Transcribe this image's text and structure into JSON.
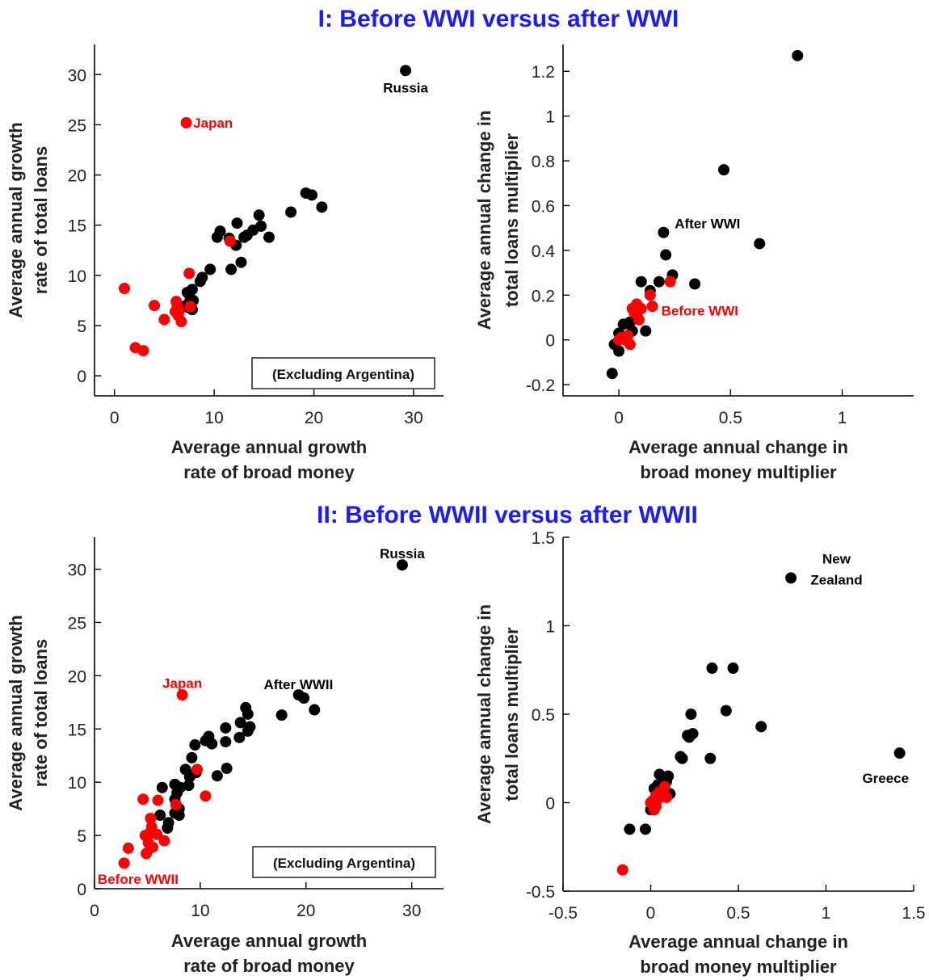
{
  "sections": [
    {
      "title": "I: Before WWI versus after WWI"
    },
    {
      "title": "II: Before WWII versus after WWII"
    }
  ],
  "colors": {
    "before": "#ff0000",
    "after": "#000000",
    "title": "#1a1aff"
  },
  "chart_data": [
    {
      "id": "panel-1a",
      "type": "scatter",
      "xlabel": [
        "Average annual growth",
        "rate of broad money"
      ],
      "ylabel": [
        "Average annual growth",
        "rate of total loans"
      ],
      "xlim": [
        -2,
        33
      ],
      "ylim": [
        -2,
        33
      ],
      "xticks": [
        0,
        10,
        20,
        30
      ],
      "yticks": [
        0,
        5,
        10,
        15,
        20,
        25,
        30
      ],
      "tick_labels_x": [
        "0",
        "10",
        "20",
        "30"
      ],
      "tick_labels_y": [
        "0",
        "5",
        "10",
        "15",
        "20",
        "25",
        "30"
      ],
      "note_box": "(Excluding Argentina)",
      "series": [
        {
          "color": "#000000",
          "points": [
            [
              29.2,
              30.4
            ],
            [
              19.2,
              18.2
            ],
            [
              19.8,
              18.0
            ],
            [
              20.8,
              16.8
            ],
            [
              17.7,
              16.3
            ],
            [
              14.5,
              16.0
            ],
            [
              12.3,
              15.2
            ],
            [
              14.7,
              14.9
            ],
            [
              13.9,
              14.5
            ],
            [
              10.6,
              14.4
            ],
            [
              13.3,
              14.0
            ],
            [
              13.0,
              13.8
            ],
            [
              10.3,
              13.8
            ],
            [
              11.5,
              13.7
            ],
            [
              15.5,
              13.8
            ],
            [
              12.2,
              13.0
            ],
            [
              11.7,
              10.6
            ],
            [
              12.7,
              11.3
            ],
            [
              9.6,
              10.6
            ],
            [
              8.8,
              9.8
            ],
            [
              8.6,
              9.4
            ],
            [
              7.8,
              8.6
            ],
            [
              7.3,
              8.3
            ],
            [
              7.6,
              7.6
            ],
            [
              7.9,
              7.5
            ],
            [
              7.2,
              7.0
            ],
            [
              7.4,
              6.8
            ],
            [
              7.8,
              6.6
            ]
          ]
        },
        {
          "color": "#ff0000",
          "points": [
            [
              7.2,
              25.2
            ],
            [
              1.0,
              8.7
            ],
            [
              11.6,
              13.4
            ],
            [
              7.5,
              10.2
            ],
            [
              4.0,
              7.0
            ],
            [
              6.2,
              7.4
            ],
            [
              6.3,
              7.0
            ],
            [
              6.5,
              6.5
            ],
            [
              6.4,
              6.0
            ],
            [
              6.1,
              6.4
            ],
            [
              5.0,
              5.6
            ],
            [
              6.7,
              5.4
            ],
            [
              7.6,
              6.9
            ],
            [
              2.1,
              2.8
            ],
            [
              2.9,
              2.5
            ]
          ]
        }
      ],
      "annotations": [
        {
          "text": "Russia",
          "x": 29.2,
          "y": 28.7,
          "color": "#000000",
          "anchor": "middle"
        },
        {
          "text": "Japan",
          "x": 7.9,
          "y": 25.2,
          "color": "#ff0000",
          "anchor": "start"
        }
      ]
    },
    {
      "id": "panel-1b",
      "type": "scatter",
      "xlabel": [
        "Average annual change in",
        "broad money multiplier"
      ],
      "ylabel": [
        "Average annual change in",
        "total loans multiplier"
      ],
      "xlim": [
        -0.25,
        1.32
      ],
      "ylim": [
        -0.25,
        1.32
      ],
      "xticks": [
        0,
        0.5,
        1
      ],
      "yticks": [
        -0.2,
        0,
        0.2,
        0.4,
        0.6,
        0.8,
        1,
        1.2
      ],
      "tick_labels_x": [
        "0",
        "0.5",
        "1"
      ],
      "tick_labels_y": [
        "-0.2",
        "0",
        "0.2",
        "0.4",
        "0.6",
        "0.8",
        "1",
        "1.2"
      ],
      "series": [
        {
          "color": "#000000",
          "points": [
            [
              0.8,
              1.27
            ],
            [
              0.47,
              0.76
            ],
            [
              0.63,
              0.43
            ],
            [
              0.2,
              0.48
            ],
            [
              0.21,
              0.38
            ],
            [
              0.24,
              0.29
            ],
            [
              0.34,
              0.25
            ],
            [
              0.18,
              0.26
            ],
            [
              0.1,
              0.26
            ],
            [
              0.14,
              0.22
            ],
            [
              0.12,
              0.04
            ],
            [
              -0.03,
              -0.15
            ],
            [
              -0.02,
              -0.02
            ],
            [
              0.0,
              -0.05
            ],
            [
              0.02,
              0.07
            ],
            [
              0.05,
              0.08
            ],
            [
              0.08,
              0.11
            ],
            [
              0.06,
              0.04
            ],
            [
              0.0,
              0.03
            ]
          ]
        },
        {
          "color": "#ff0000",
          "points": [
            [
              0.23,
              0.26
            ],
            [
              0.14,
              0.2
            ],
            [
              0.08,
              0.16
            ],
            [
              0.1,
              0.14
            ],
            [
              0.15,
              0.15
            ],
            [
              0.07,
              0.12
            ],
            [
              0.09,
              0.09
            ],
            [
              0.06,
              0.14
            ],
            [
              0.04,
              0.02
            ],
            [
              0.01,
              0.01
            ],
            [
              0.0,
              0.0
            ],
            [
              0.03,
              0.0
            ],
            [
              0.05,
              -0.02
            ]
          ]
        }
      ],
      "annotations": [
        {
          "text": "After WWI",
          "x": 0.25,
          "y": 0.52,
          "color": "#000000",
          "anchor": "start"
        },
        {
          "text": "Before WWI",
          "x": 0.19,
          "y": 0.13,
          "color": "#ff0000",
          "anchor": "start"
        }
      ]
    },
    {
      "id": "panel-2a",
      "type": "scatter",
      "xlabel": [
        "Average annual growth",
        "rate of broad money"
      ],
      "ylabel": [
        "Average annual growth",
        "rate of total loans"
      ],
      "xlim": [
        0,
        33
      ],
      "ylim": [
        0,
        33
      ],
      "xticks": [
        0,
        10,
        20,
        30
      ],
      "yticks": [
        0,
        5,
        10,
        15,
        20,
        25,
        30
      ],
      "tick_labels_x": [
        "0",
        "10",
        "20",
        "30"
      ],
      "tick_labels_y": [
        "0",
        "5",
        "10",
        "15",
        "20",
        "25",
        "30"
      ],
      "note_box": "(Excluding Argentina)",
      "series": [
        {
          "color": "#000000",
          "points": [
            [
              29.1,
              30.4
            ],
            [
              19.3,
              18.2
            ],
            [
              19.8,
              17.9
            ],
            [
              20.8,
              16.8
            ],
            [
              17.7,
              16.3
            ],
            [
              14.3,
              17.0
            ],
            [
              14.5,
              16.4
            ],
            [
              13.8,
              15.6
            ],
            [
              14.7,
              15.2
            ],
            [
              12.4,
              15.1
            ],
            [
              13.7,
              14.2
            ],
            [
              14.5,
              14.8
            ],
            [
              10.8,
              14.3
            ],
            [
              11.1,
              13.6
            ],
            [
              10.5,
              13.9
            ],
            [
              12.4,
              13.8
            ],
            [
              9.5,
              13.5
            ],
            [
              9.2,
              12.3
            ],
            [
              12.5,
              11.3
            ],
            [
              11.6,
              10.6
            ],
            [
              8.6,
              11.2
            ],
            [
              9.0,
              10.5
            ],
            [
              9.6,
              10.9
            ],
            [
              7.6,
              9.8
            ],
            [
              8.1,
              9.5
            ],
            [
              7.8,
              9.0
            ],
            [
              8.9,
              9.7
            ],
            [
              7.6,
              8.4
            ],
            [
              6.4,
              9.5
            ],
            [
              8.0,
              7.5
            ],
            [
              7.6,
              7.1
            ],
            [
              8.0,
              6.9
            ],
            [
              6.2,
              6.9
            ],
            [
              7.0,
              6.2
            ],
            [
              6.9,
              5.7
            ]
          ]
        },
        {
          "color": "#ff0000",
          "points": [
            [
              8.3,
              18.2
            ],
            [
              4.6,
              8.4
            ],
            [
              6.0,
              8.3
            ],
            [
              9.7,
              11.2
            ],
            [
              10.5,
              8.7
            ],
            [
              7.7,
              7.9
            ],
            [
              5.3,
              6.6
            ],
            [
              5.4,
              5.8
            ],
            [
              5.9,
              5.1
            ],
            [
              5.2,
              5.2
            ],
            [
              4.8,
              5.0
            ],
            [
              6.6,
              4.5
            ],
            [
              5.1,
              4.3
            ],
            [
              5.5,
              3.9
            ],
            [
              4.9,
              3.3
            ],
            [
              3.2,
              3.8
            ],
            [
              2.8,
              2.4
            ]
          ]
        }
      ],
      "annotations": [
        {
          "text": "Russia",
          "x": 29.1,
          "y": 31.5,
          "color": "#000000",
          "anchor": "middle"
        },
        {
          "text": "Japan",
          "x": 8.3,
          "y": 19.3,
          "color": "#ff0000",
          "anchor": "middle"
        },
        {
          "text": "After WWII",
          "x": 16.0,
          "y": 19.2,
          "color": "#000000",
          "anchor": "start"
        },
        {
          "text": "Before WWII",
          "x": 0.3,
          "y": 0.9,
          "color": "#ff0000",
          "anchor": "start"
        }
      ]
    },
    {
      "id": "panel-2b",
      "type": "scatter",
      "xlabel": [
        "Average annual change in",
        "broad money multiplier"
      ],
      "ylabel": [
        "Average annual change in",
        "total loans multiplier"
      ],
      "xlim": [
        -0.5,
        1.5
      ],
      "ylim": [
        -0.5,
        1.5
      ],
      "xticks": [
        -0.5,
        0,
        0.5,
        1,
        1.5
      ],
      "yticks": [
        -0.5,
        0,
        0.5,
        1,
        1.5
      ],
      "tick_labels_x": [
        "-0.5",
        "0",
        "0.5",
        "1",
        "1.5"
      ],
      "tick_labels_y": [
        "-0.5",
        "0",
        "0.5",
        "1",
        "1.5"
      ],
      "series": [
        {
          "color": "#000000",
          "points": [
            [
              0.8,
              1.27
            ],
            [
              1.42,
              0.28
            ],
            [
              0.35,
              0.76
            ],
            [
              0.47,
              0.76
            ],
            [
              0.43,
              0.52
            ],
            [
              0.63,
              0.43
            ],
            [
              0.23,
              0.5
            ],
            [
              0.24,
              0.39
            ],
            [
              0.21,
              0.38
            ],
            [
              0.22,
              0.37
            ],
            [
              0.34,
              0.25
            ],
            [
              0.17,
              0.26
            ],
            [
              0.18,
              0.25
            ],
            [
              0.05,
              0.16
            ],
            [
              0.1,
              0.15
            ],
            [
              0.02,
              0.08
            ],
            [
              0.08,
              0.14
            ],
            [
              0.09,
              0.12
            ],
            [
              0.04,
              0.1
            ],
            [
              0.11,
              0.05
            ],
            [
              -0.12,
              -0.15
            ],
            [
              -0.03,
              -0.15
            ],
            [
              0.0,
              -0.04
            ]
          ]
        },
        {
          "color": "#ff0000",
          "points": [
            [
              -0.16,
              -0.38
            ],
            [
              0.08,
              0.09
            ],
            [
              0.06,
              0.05
            ],
            [
              0.04,
              0.02
            ],
            [
              0.01,
              0.01
            ],
            [
              0.0,
              0.0
            ],
            [
              0.03,
              -0.02
            ],
            [
              0.02,
              -0.04
            ],
            [
              0.05,
              0.06
            ],
            [
              0.09,
              0.03
            ],
            [
              0.07,
              0.07
            ],
            [
              0.03,
              0.04
            ]
          ]
        }
      ],
      "annotations": [
        {
          "text": "New",
          "x": 1.06,
          "y": 1.38,
          "color": "#000000",
          "anchor": "middle"
        },
        {
          "text": "Zealand",
          "x": 1.06,
          "y": 1.26,
          "color": "#000000",
          "anchor": "middle"
        },
        {
          "text": "Greece",
          "x": 1.34,
          "y": 0.14,
          "color": "#000000",
          "anchor": "middle"
        }
      ]
    }
  ]
}
